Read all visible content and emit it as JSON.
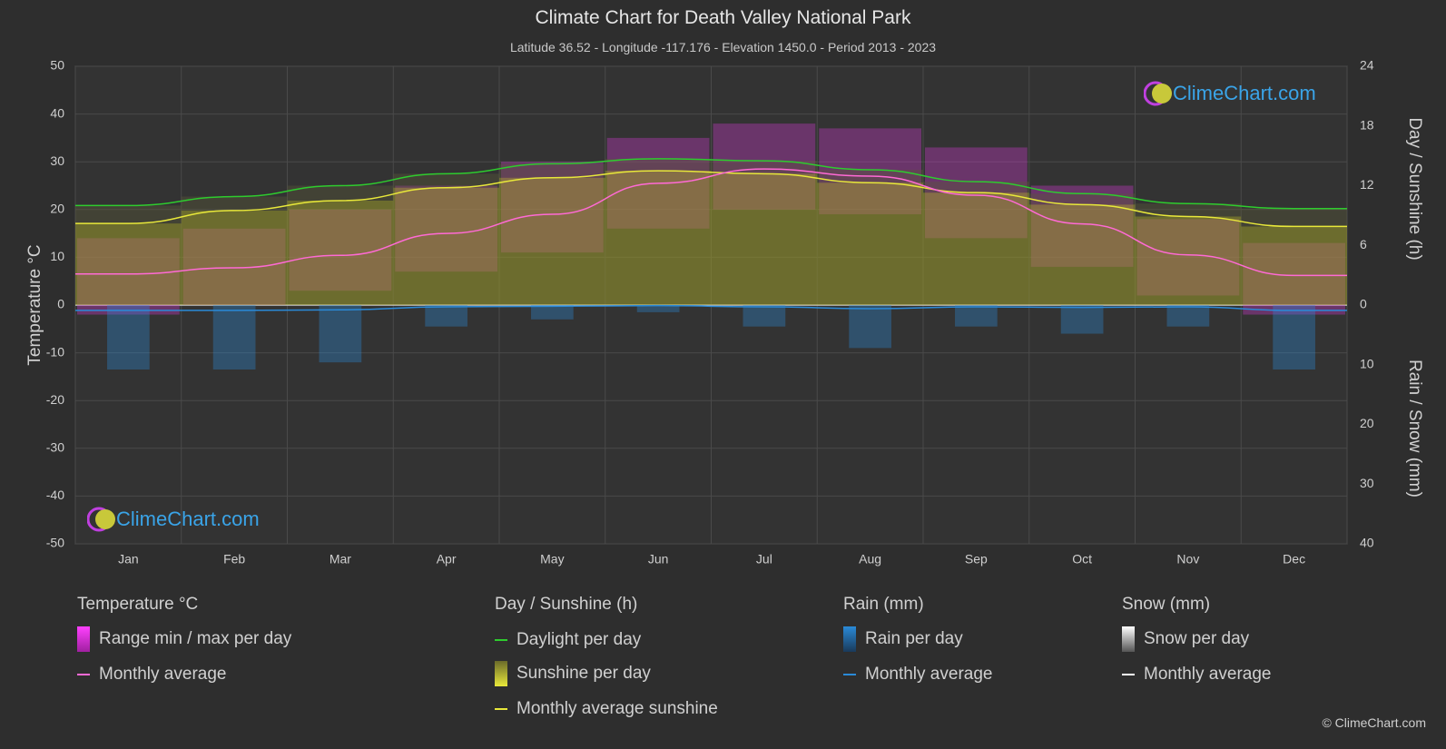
{
  "title": "Climate Chart for Death Valley National Park",
  "subtitle": "Latitude 36.52 - Longitude -117.176 - Elevation 1450.0 - Period 2013 - 2023",
  "logo_text": "ClimeChart.com",
  "copyright": "© ClimeChart.com",
  "axes": {
    "left_label": "Temperature °C",
    "right_top_label": "Day / Sunshine (h)",
    "right_bottom_label": "Rain / Snow (mm)",
    "left_ticks": [
      "50",
      "40",
      "30",
      "20",
      "10",
      "0",
      "-10",
      "-20",
      "-30",
      "-40",
      "-50"
    ],
    "right_top_ticks": [
      "24",
      "18",
      "12",
      "6",
      "0"
    ],
    "right_bottom_ticks": [
      "10",
      "20",
      "30",
      "40"
    ]
  },
  "legend": {
    "temperature": {
      "header": "Temperature °C",
      "range": "Range min / max per day",
      "avg": "Monthly average"
    },
    "sunshine": {
      "header": "Day / Sunshine (h)",
      "daylight": "Daylight per day",
      "sunshine": "Sunshine per day",
      "avg": "Monthly average sunshine"
    },
    "rain": {
      "header": "Rain (mm)",
      "per_day": "Rain per day",
      "avg": "Monthly average"
    },
    "snow": {
      "header": "Snow (mm)",
      "per_day": "Snow per day",
      "avg": "Monthly average"
    }
  },
  "colors": {
    "background": "#2e2e2e",
    "daylight": "#2ecc2e",
    "sunshine_avg": "#e8e83a",
    "sunshine_fill": "#9a9a2a",
    "temp_avg": "#ff6ad5",
    "temp_range": "#d03ad0",
    "rain": "#2a8ad8",
    "snow": "#ffffff",
    "logo": "#3aa4e8"
  },
  "chart_data": {
    "type": "area",
    "categories": [
      "Jan",
      "Feb",
      "Mar",
      "Apr",
      "May",
      "Jun",
      "Jul",
      "Aug",
      "Sep",
      "Oct",
      "Nov",
      "Dec"
    ],
    "temp_ylim": [
      -50,
      50
    ],
    "sun_ylim": [
      0,
      24
    ],
    "rain_ylim": [
      0,
      40
    ],
    "series": [
      {
        "name": "Daylight per day",
        "unit": "h",
        "values": [
          10.0,
          10.9,
          12.0,
          13.2,
          14.2,
          14.7,
          14.5,
          13.6,
          12.4,
          11.2,
          10.2,
          9.7
        ]
      },
      {
        "name": "Monthly average sunshine",
        "unit": "h",
        "values": [
          8.2,
          9.5,
          10.5,
          11.8,
          12.8,
          13.5,
          13.2,
          12.3,
          11.3,
          10.1,
          8.9,
          7.9
        ]
      },
      {
        "name": "Monthly average",
        "unit": "°C",
        "values": [
          6.5,
          7.8,
          10.4,
          15.0,
          19.0,
          25.5,
          28.5,
          27.0,
          23.0,
          17.0,
          10.5,
          6.2
        ]
      },
      {
        "name": "Temperature max (range top)",
        "unit": "°C",
        "values": [
          14,
          16,
          20,
          25,
          30,
          35,
          38,
          37,
          33,
          25,
          18,
          13
        ]
      },
      {
        "name": "Temperature min (range bottom)",
        "unit": "°C",
        "values": [
          -2,
          0,
          3,
          7,
          11,
          16,
          20,
          19,
          14,
          8,
          2,
          -2
        ]
      },
      {
        "name": "Rain monthly average",
        "unit": "mm",
        "values": [
          0.9,
          0.9,
          0.8,
          0.3,
          0.2,
          0.1,
          0.3,
          0.6,
          0.3,
          0.4,
          0.3,
          0.9
        ]
      },
      {
        "name": "Snow monthly average",
        "unit": "mm",
        "values": [
          0,
          0,
          0,
          0,
          0,
          0,
          0,
          0,
          0,
          0,
          0,
          0
        ]
      }
    ]
  }
}
